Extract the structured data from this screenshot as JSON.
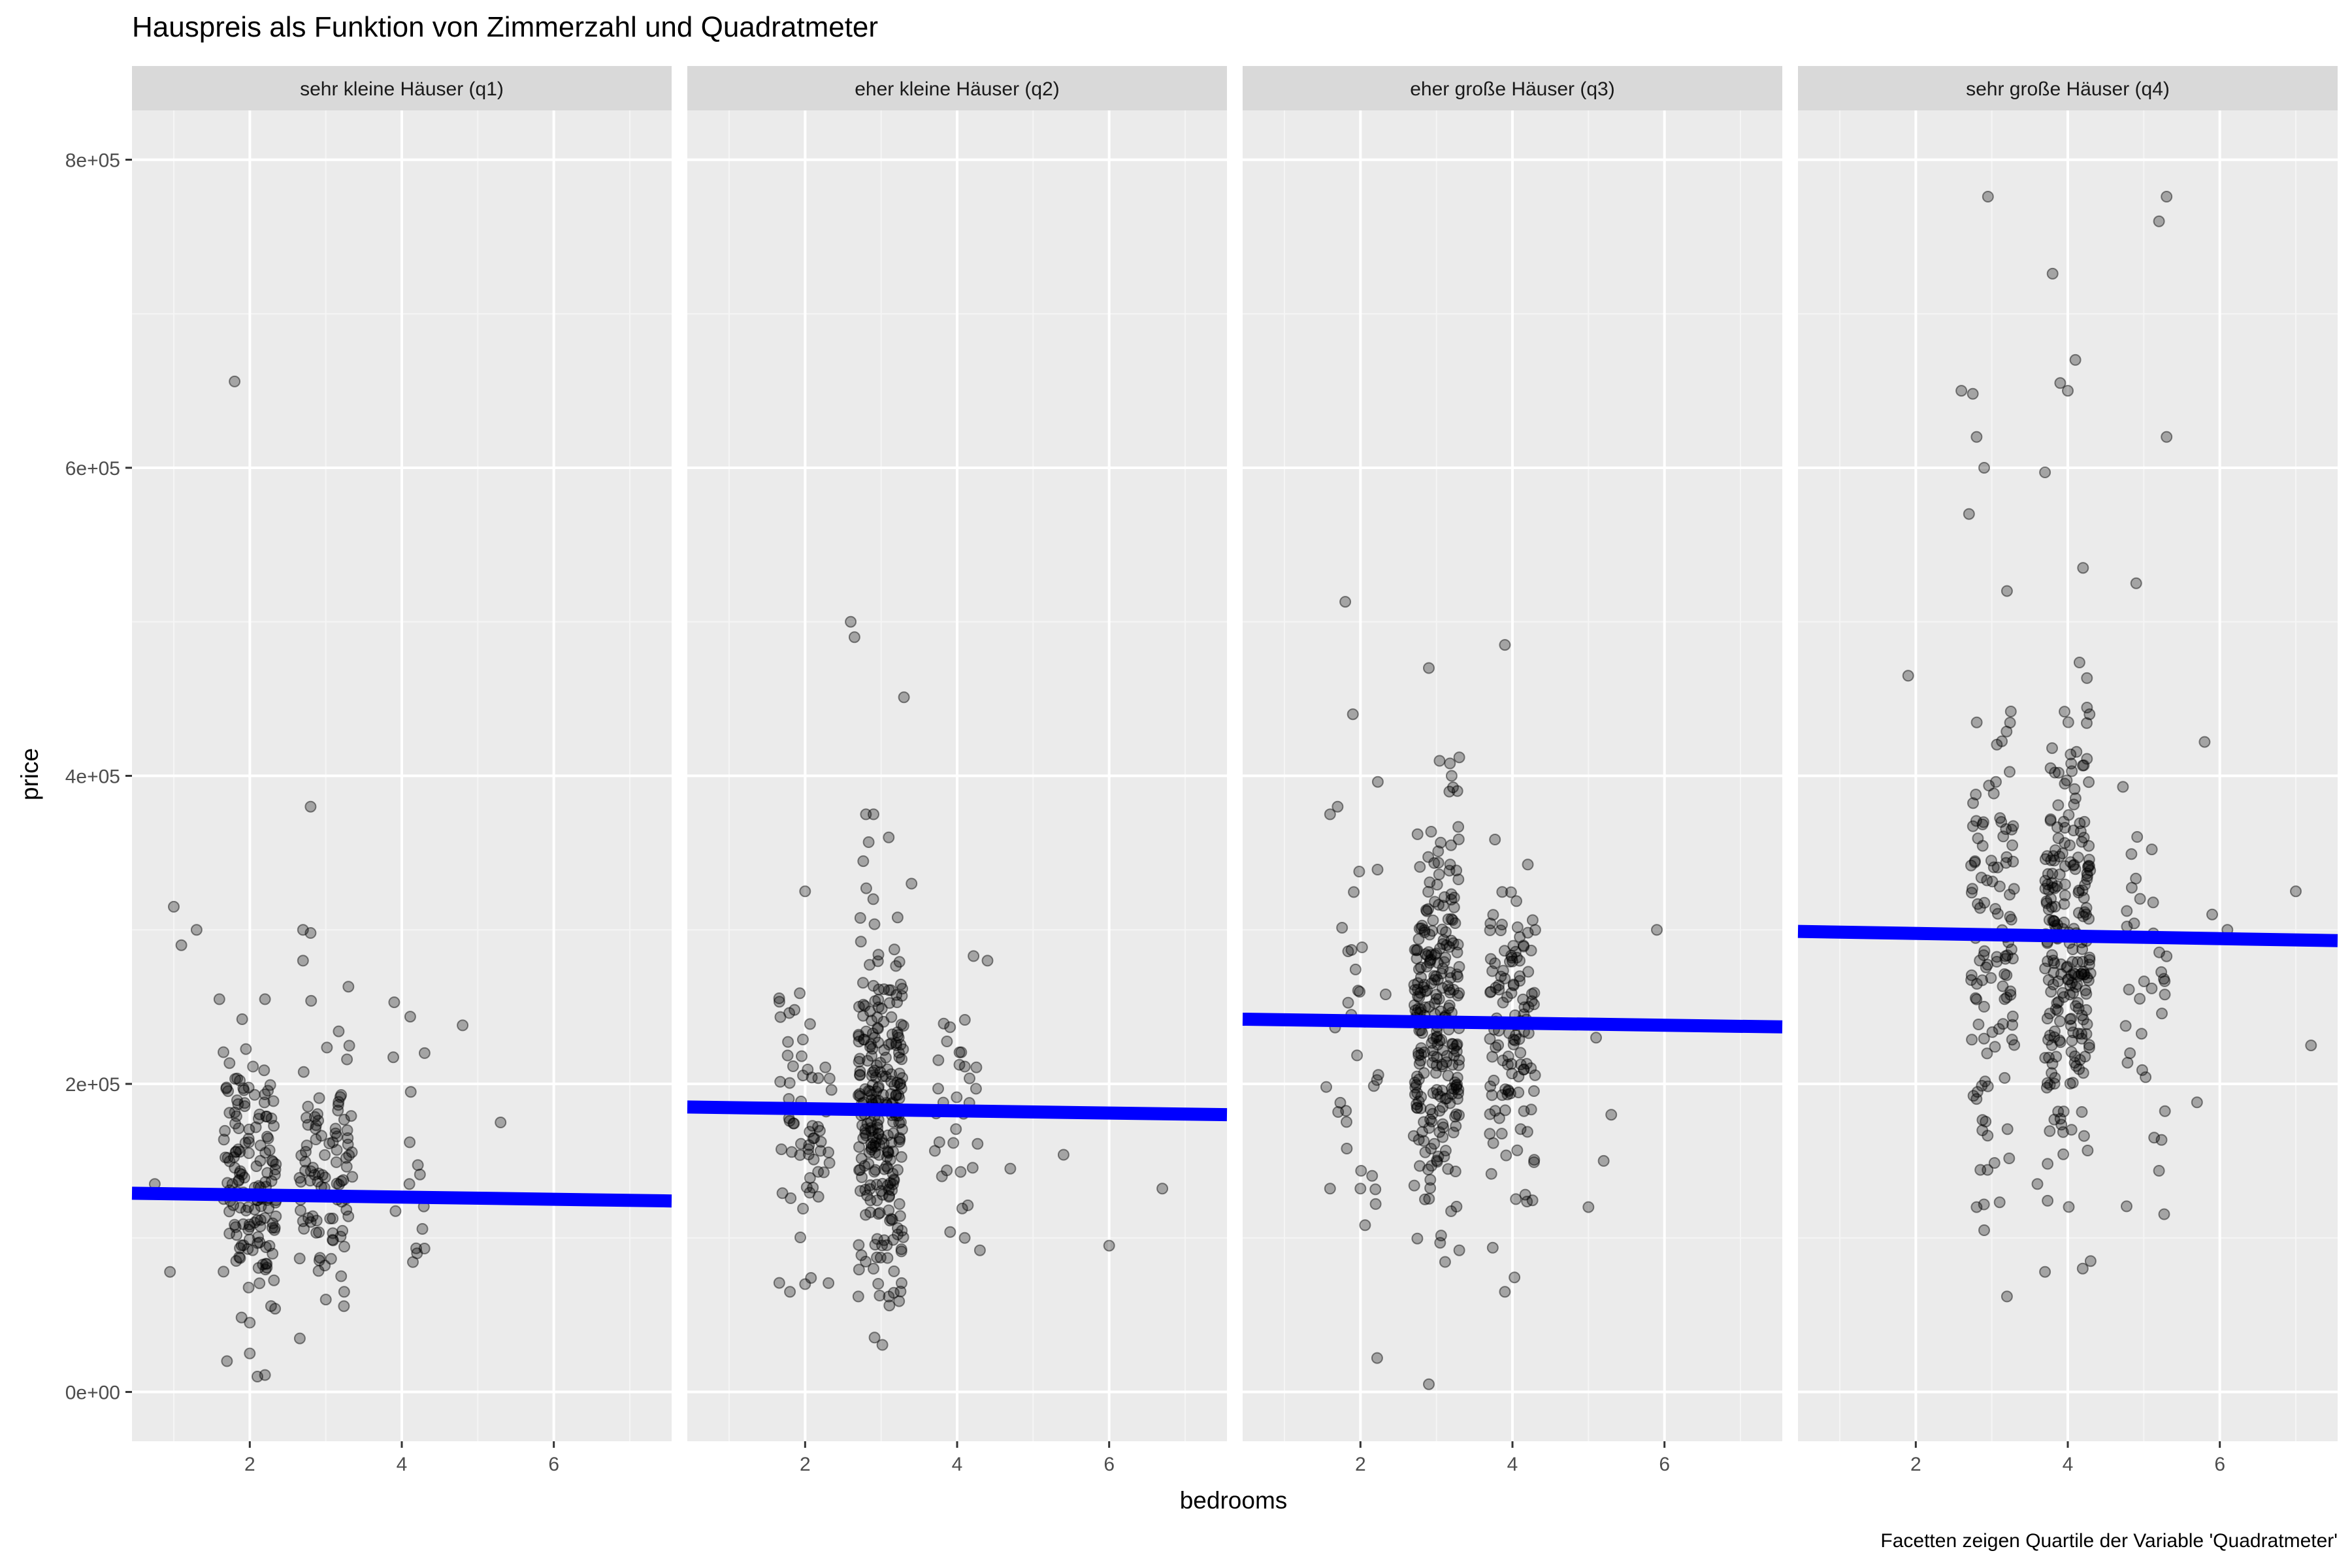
{
  "chart_data": {
    "type": "scatter",
    "title": "Hauspreis als Funktion von Zimmerzahl und Quadratmeter",
    "xlabel": "bedrooms",
    "ylabel": "price",
    "caption": "Facetten zeigen Quartile der Variable 'Quadratmeter'",
    "xlim": [
      0.45,
      7.55
    ],
    "ylim": [
      -32000,
      832000
    ],
    "x_ticks": [
      2,
      4,
      6
    ],
    "x_tick_labels": [
      "2",
      "4",
      "6"
    ],
    "y_ticks": [
      0,
      200000,
      400000,
      600000,
      800000
    ],
    "y_tick_labels": [
      "0e+00",
      "2e+05",
      "4e+05",
      "6e+05",
      "8e+05"
    ],
    "grid": true,
    "point_color": "#000000",
    "point_alpha": 0.3,
    "line_color": "#0000ff",
    "panel_background": "#ebebeb",
    "strip_background": "#d9d9d9",
    "facets": [
      {
        "label": "sehr kleine Häuser (q1)",
        "fit_line": {
          "x": [
            0.45,
            7.55
          ],
          "y": [
            129000,
            124000
          ]
        },
        "outliers": [
          [
            1.8,
            656000
          ],
          [
            2.8,
            380000
          ],
          [
            1.0,
            315000
          ],
          [
            1.3,
            300000
          ],
          [
            1.1,
            290000
          ],
          [
            2.7,
            300000
          ],
          [
            2.8,
            298000
          ],
          [
            2.7,
            280000
          ],
          [
            1.6,
            255000
          ],
          [
            2.2,
            255000
          ],
          [
            3.9,
            253000
          ],
          [
            4.8,
            238000
          ],
          [
            1.9,
            242000
          ],
          [
            5.3,
            175000
          ],
          [
            0.75,
            135000
          ],
          [
            0.95,
            78000
          ],
          [
            1.7,
            20000
          ],
          [
            2.0,
            25000
          ],
          [
            2.1,
            10000
          ],
          [
            2.2,
            11000
          ],
          [
            4.2,
            90000
          ],
          [
            4.3,
            220000
          ],
          [
            4.1,
            135000
          ],
          [
            3.0,
            60000
          ],
          [
            2.0,
            45000
          ]
        ],
        "clusters": [
          {
            "x": 2.0,
            "xs": 0.35,
            "y": 140000,
            "ys": 38000,
            "n": 150
          },
          {
            "x": 3.0,
            "xs": 0.35,
            "y": 148000,
            "ys": 40000,
            "n": 95
          },
          {
            "x": 4.1,
            "xs": 0.25,
            "y": 165000,
            "ys": 35000,
            "n": 12
          }
        ]
      },
      {
        "label": "eher kleine Häuser (q2)",
        "fit_line": {
          "x": [
            0.45,
            7.55
          ],
          "y": [
            185000,
            180000
          ]
        },
        "outliers": [
          [
            2.6,
            500000
          ],
          [
            2.65,
            490000
          ],
          [
            3.3,
            451000
          ],
          [
            2.8,
            375000
          ],
          [
            2.9,
            375000
          ],
          [
            3.1,
            360000
          ],
          [
            2.0,
            325000
          ],
          [
            3.4,
            330000
          ],
          [
            4.4,
            280000
          ],
          [
            5.4,
            154000
          ],
          [
            6.7,
            132000
          ],
          [
            6.0,
            95000
          ],
          [
            4.7,
            145000
          ],
          [
            1.8,
            65000
          ],
          [
            2.0,
            70000
          ],
          [
            2.7,
            62000
          ],
          [
            3.8,
            140000
          ],
          [
            4.1,
            100000
          ],
          [
            4.3,
            92000
          ],
          [
            2.9,
            80000
          ]
        ],
        "clusters": [
          {
            "x": 2.0,
            "xs": 0.35,
            "y": 165000,
            "ys": 45000,
            "n": 60
          },
          {
            "x": 3.0,
            "xs": 0.3,
            "y": 180000,
            "ys": 55000,
            "n": 260
          },
          {
            "x": 4.0,
            "xs": 0.3,
            "y": 190000,
            "ys": 38000,
            "n": 30
          }
        ]
      },
      {
        "label": "eher große Häuser (q3)",
        "fit_line": {
          "x": [
            0.45,
            7.55
          ],
          "y": [
            242000,
            237000
          ]
        },
        "outliers": [
          [
            1.8,
            513000
          ],
          [
            1.9,
            440000
          ],
          [
            2.9,
            470000
          ],
          [
            3.9,
            485000
          ],
          [
            3.3,
            412000
          ],
          [
            3.2,
            400000
          ],
          [
            5.9,
            300000
          ],
          [
            5.0,
            120000
          ],
          [
            5.2,
            150000
          ],
          [
            5.3,
            180000
          ],
          [
            2.9,
            5000
          ],
          [
            3.9,
            65000
          ],
          [
            3.3,
            92000
          ],
          [
            1.6,
            132000
          ],
          [
            1.55,
            198000
          ],
          [
            1.7,
            380000
          ],
          [
            1.6,
            375000
          ],
          [
            2.0,
            132000
          ],
          [
            2.2,
            122000
          ],
          [
            5.1,
            230000
          ]
        ],
        "clusters": [
          {
            "x": 2.0,
            "xs": 0.35,
            "y": 250000,
            "ys": 80000,
            "n": 30
          },
          {
            "x": 3.0,
            "xs": 0.3,
            "y": 235000,
            "ys": 65000,
            "n": 260
          },
          {
            "x": 4.0,
            "xs": 0.3,
            "y": 230000,
            "ys": 55000,
            "n": 120
          }
        ]
      },
      {
        "label": "sehr große Häuser (q4)",
        "fit_line": {
          "x": [
            0.45,
            7.55
          ],
          "y": [
            299000,
            293000
          ]
        },
        "outliers": [
          [
            2.95,
            776000
          ],
          [
            5.3,
            776000
          ],
          [
            5.2,
            760000
          ],
          [
            3.8,
            726000
          ],
          [
            4.1,
            670000
          ],
          [
            3.9,
            655000
          ],
          [
            4.0,
            650000
          ],
          [
            2.6,
            650000
          ],
          [
            2.75,
            648000
          ],
          [
            5.3,
            620000
          ],
          [
            2.8,
            620000
          ],
          [
            2.9,
            600000
          ],
          [
            3.7,
            597000
          ],
          [
            2.7,
            570000
          ],
          [
            1.9,
            465000
          ],
          [
            7.0,
            325000
          ],
          [
            7.2,
            225000
          ],
          [
            5.8,
            422000
          ],
          [
            6.1,
            300000
          ],
          [
            3.2,
            62000
          ],
          [
            3.7,
            78000
          ],
          [
            4.3,
            85000
          ],
          [
            3.6,
            135000
          ],
          [
            2.8,
            120000
          ],
          [
            2.9,
            105000
          ],
          [
            5.9,
            310000
          ],
          [
            5.7,
            188000
          ],
          [
            4.9,
            525000
          ],
          [
            4.2,
            535000
          ],
          [
            3.2,
            520000
          ]
        ],
        "clusters": [
          {
            "x": 3.0,
            "xs": 0.3,
            "y": 290000,
            "ys": 75000,
            "n": 110
          },
          {
            "x": 4.0,
            "xs": 0.3,
            "y": 290000,
            "ys": 70000,
            "n": 230
          },
          {
            "x": 5.0,
            "xs": 0.3,
            "y": 270000,
            "ys": 75000,
            "n": 35
          }
        ]
      }
    ]
  }
}
